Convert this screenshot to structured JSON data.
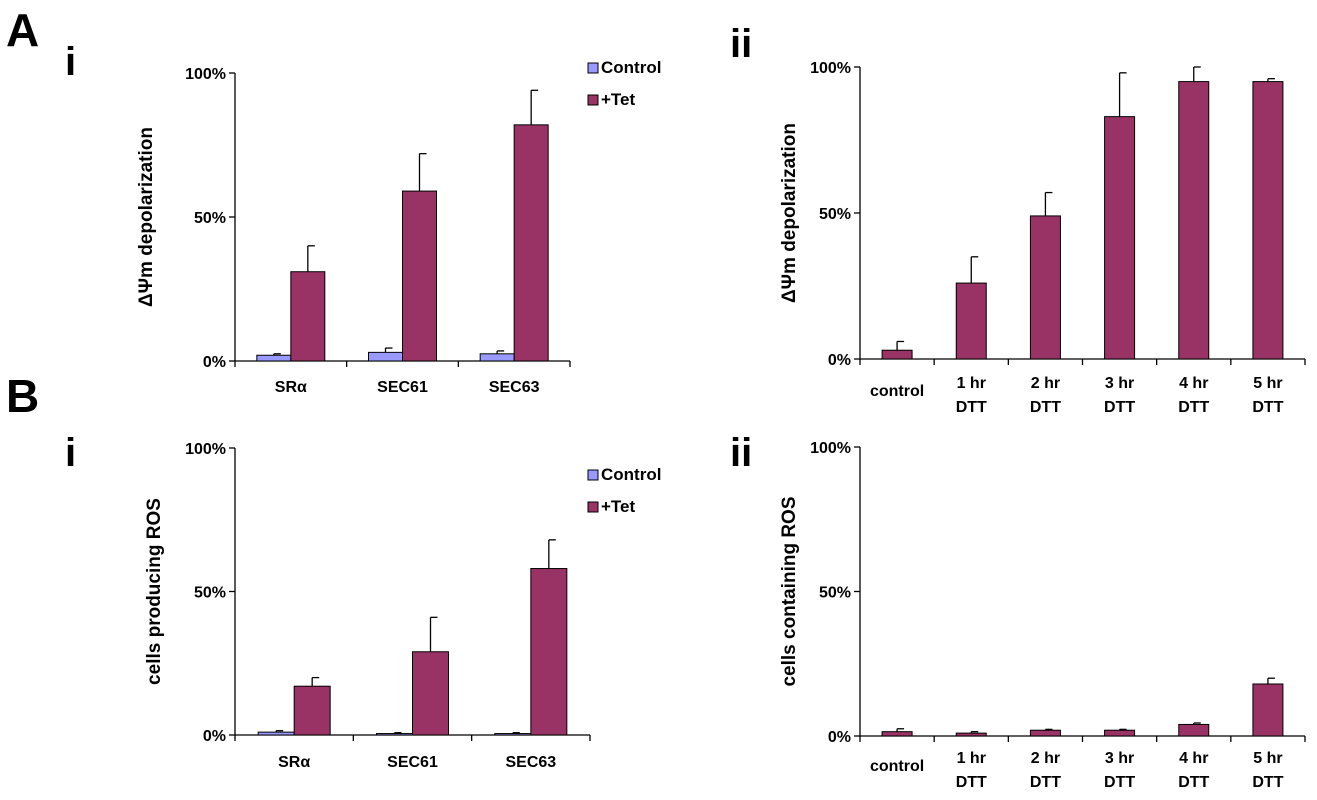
{
  "panel_letters": [
    "A",
    "B"
  ],
  "chart_data": [
    {
      "id": "Ai",
      "type": "bar",
      "panel": "A",
      "sub_label": "i",
      "ylabel": "ΔΨm depolarization",
      "ylim": [
        0,
        100
      ],
      "yticks": [
        "0%",
        "50%",
        "100%"
      ],
      "categories": [
        "SRα",
        "SEC61",
        "SEC63"
      ],
      "legend": "top-right",
      "series": [
        {
          "name": "Control",
          "color": "#9999ff",
          "values": [
            2,
            3,
            2.5
          ],
          "errors": [
            0.5,
            1.5,
            1
          ]
        },
        {
          "name": "+Tet",
          "color": "#993366",
          "values": [
            31,
            59,
            82
          ],
          "errors": [
            9,
            13,
            12
          ]
        }
      ]
    },
    {
      "id": "Aii",
      "type": "bar",
      "panel": "A",
      "sub_label": "ii",
      "ylabel": "ΔΨm depolarization",
      "ylim": [
        0,
        100
      ],
      "yticks": [
        "0%",
        "50%",
        "100%"
      ],
      "categories": [
        [
          "control"
        ],
        [
          "1 hr",
          "DTT"
        ],
        [
          "2 hr",
          "DTT"
        ],
        [
          "3 hr",
          "DTT"
        ],
        [
          "4 hr",
          "DTT"
        ],
        [
          "5 hr",
          "DTT"
        ]
      ],
      "series": [
        {
          "color": "#993366",
          "values": [
            3,
            26,
            49,
            83,
            95,
            95
          ],
          "errors": [
            3,
            9,
            8,
            15,
            5,
            1
          ]
        }
      ]
    },
    {
      "id": "Bi",
      "type": "bar",
      "panel": "B",
      "sub_label": "i",
      "ylabel": "cells producing ROS",
      "ylim": [
        0,
        100
      ],
      "yticks": [
        "0%",
        "50%",
        "100%"
      ],
      "categories": [
        "SRα",
        "SEC61",
        "SEC63"
      ],
      "legend": "top-right",
      "series": [
        {
          "name": "Control",
          "color": "#9999ff",
          "values": [
            1,
            0.5,
            0.5
          ],
          "errors": [
            0.5,
            0.3,
            0.3
          ]
        },
        {
          "name": "+Tet",
          "color": "#993366",
          "values": [
            17,
            29,
            58
          ],
          "errors": [
            3,
            12,
            10
          ]
        }
      ]
    },
    {
      "id": "Bii",
      "type": "bar",
      "panel": "B",
      "sub_label": "ii",
      "ylabel": "cells containing ROS",
      "ylim": [
        0,
        100
      ],
      "yticks": [
        "0%",
        "50%",
        "100%"
      ],
      "categories": [
        [
          "control"
        ],
        [
          "1 hr",
          "DTT"
        ],
        [
          "2 hr",
          "DTT"
        ],
        [
          "3 hr",
          "DTT"
        ],
        [
          "4 hr",
          "DTT"
        ],
        [
          "5 hr",
          "DTT"
        ]
      ],
      "series": [
        {
          "color": "#993366",
          "values": [
            1.5,
            1,
            2,
            2,
            4,
            18
          ],
          "errors": [
            1,
            0.5,
            0.3,
            0.3,
            0.5,
            2
          ]
        }
      ]
    }
  ]
}
